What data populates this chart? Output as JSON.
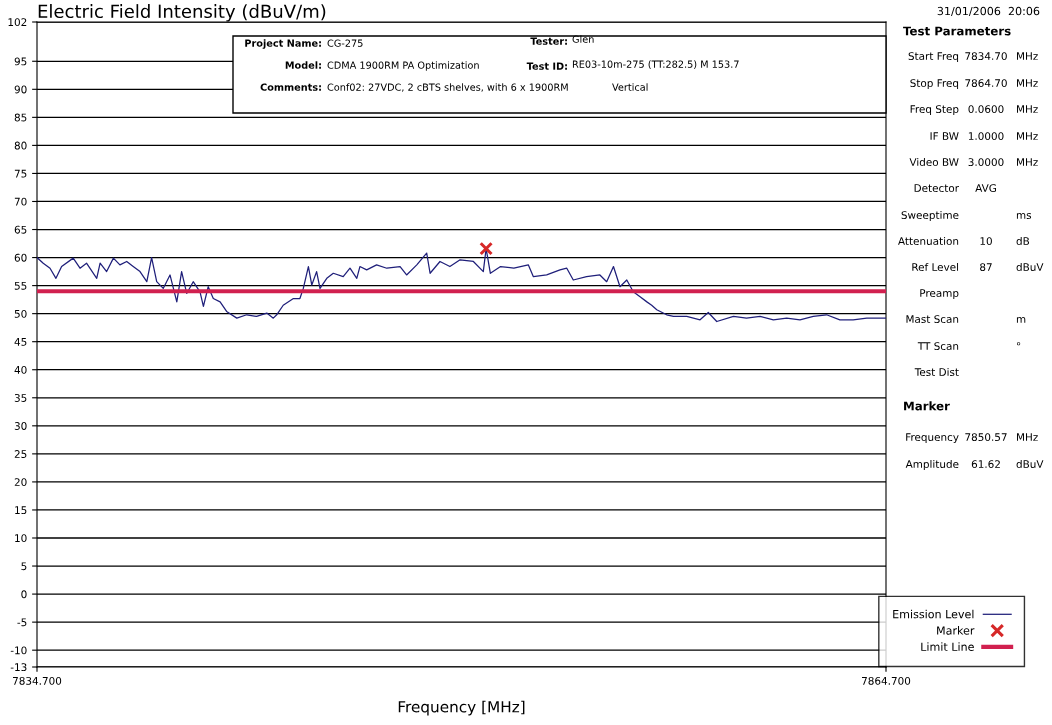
{
  "chart_data": {
    "type": "line",
    "title": "Electric Field Intensity (dBuV/m)",
    "xlabel": "Frequency [MHz]",
    "xlim": [
      7834.7,
      7864.7
    ],
    "xticks": [
      {
        "value": 7834.7,
        "label": "7834.700"
      },
      {
        "value": 7864.7,
        "label": "7864.700"
      }
    ],
    "ylim": [
      -13,
      102
    ],
    "yticks": [
      -13,
      -10,
      -5,
      0,
      5,
      10,
      15,
      20,
      25,
      30,
      35,
      40,
      45,
      50,
      55,
      60,
      65,
      70,
      75,
      80,
      85,
      90,
      95,
      102
    ],
    "grid": "y",
    "legend": "right",
    "series": [
      {
        "name": "Emission Level",
        "color": "#1f1f7a",
        "line_style": "solid",
        "x": [
          7834.7,
          7834.92,
          7835.16,
          7835.37,
          7835.57,
          7835.98,
          7836.22,
          7836.45,
          7836.81,
          7836.93,
          7837.16,
          7837.4,
          7837.63,
          7837.87,
          7838.1,
          7838.34,
          7838.58,
          7838.75,
          7838.93,
          7839.16,
          7839.4,
          7839.64,
          7839.81,
          7839.99,
          7840.22,
          7840.46,
          7840.58,
          7840.75,
          7840.93,
          7841.17,
          7841.4,
          7841.76,
          7842.11,
          7842.46,
          7842.82,
          7843.05,
          7843.17,
          7843.4,
          7843.76,
          7843.99,
          7844.11,
          7844.29,
          7844.41,
          7844.58,
          7844.7,
          7844.94,
          7845.17,
          7845.52,
          7845.76,
          7846.0,
          7846.11,
          7846.35,
          7846.7,
          7847.06,
          7847.53,
          7847.76,
          7848.12,
          7848.47,
          7848.59,
          7848.94,
          7849.29,
          7849.65,
          7850.12,
          7850.47,
          7850.57,
          7850.72,
          7851.08,
          7851.55,
          7852.06,
          7852.24,
          7852.71,
          7853.18,
          7853.42,
          7853.65,
          7854.12,
          7854.59,
          7854.83,
          7855.07,
          7855.3,
          7855.54,
          7855.77,
          7856.01,
          7856.25,
          7856.42,
          7856.6,
          7856.95,
          7857.19,
          7857.66,
          7858.13,
          7858.42,
          7858.72,
          7859.31,
          7859.77,
          7860.25,
          7860.72,
          7861.19,
          7861.66,
          7862.13,
          7862.6,
          7863.07,
          7863.54,
          7864.02,
          7864.7
        ],
        "values": [
          60.0,
          59.0,
          58.1,
          56.3,
          58.4,
          59.9,
          58.1,
          59.0,
          56.3,
          59.0,
          57.5,
          59.9,
          58.7,
          59.3,
          58.4,
          57.5,
          55.7,
          60.0,
          55.7,
          54.5,
          56.9,
          52.1,
          57.5,
          53.6,
          55.7,
          53.9,
          51.3,
          54.8,
          52.7,
          52.1,
          50.4,
          49.2,
          49.8,
          49.5,
          50.1,
          49.2,
          49.8,
          51.5,
          52.7,
          52.7,
          54.5,
          58.4,
          55.1,
          57.5,
          54.5,
          56.3,
          57.2,
          56.6,
          58.1,
          56.3,
          58.4,
          57.8,
          58.7,
          58.1,
          58.4,
          56.9,
          58.7,
          60.8,
          57.2,
          59.3,
          58.4,
          59.6,
          59.3,
          57.5,
          61.6,
          57.2,
          58.4,
          58.1,
          58.7,
          56.6,
          56.9,
          57.8,
          58.1,
          56.0,
          56.6,
          56.9,
          55.7,
          58.4,
          54.8,
          56.0,
          53.9,
          53.0,
          52.1,
          51.5,
          50.7,
          49.8,
          49.5,
          49.5,
          48.9,
          50.2,
          48.6,
          49.5,
          49.2,
          49.5,
          48.9,
          49.2,
          48.9,
          49.5,
          49.8,
          48.9,
          48.9,
          49.2,
          49.2
        ]
      },
      {
        "name": "Marker",
        "type": "scatter",
        "color": "#d62828",
        "marker": "cross",
        "x": [
          7850.57
        ],
        "values": [
          61.6
        ]
      },
      {
        "name": "Limit Line",
        "type": "line",
        "color": "#d1204f",
        "line_style": "solid",
        "x": [
          7834.7,
          7864.7
        ],
        "values": [
          54,
          54
        ]
      }
    ],
    "annotations": [
      "31/01/2006  20:06",
      "Project Name:",
      "CG-275",
      "Model:",
      "CDMA 1900RM PA Optimization",
      "Comments:",
      "Conf02: 27VDC, 2 cBTS shelves, with 6 x 1900RM",
      "Vertical",
      "Tester:",
      "Glen",
      "Test ID:",
      "RE03-10m-275 (TT:282.5) M 153.7",
      "Test Parameters",
      "Start Freq",
      "7834.70",
      "MHz",
      "Stop Freq",
      "7864.70",
      "MHz",
      "Freq Step",
      "0.0600",
      "MHz",
      "IF BW",
      "1.0000",
      "MHz",
      "Video BW",
      "3.0000",
      "MHz",
      "Detector",
      "AVG",
      "Sweeptime",
      "ms",
      "Attenuation",
      "10",
      "dB",
      "Ref Level",
      "87",
      "dBuV",
      "Preamp",
      "Mast Scan",
      "m",
      "TT Scan",
      "°",
      "Test Dist",
      "Marker",
      "Frequency",
      "7850.57",
      "MHz",
      "Amplitude",
      "61.62",
      "dBuV"
    ]
  }
}
